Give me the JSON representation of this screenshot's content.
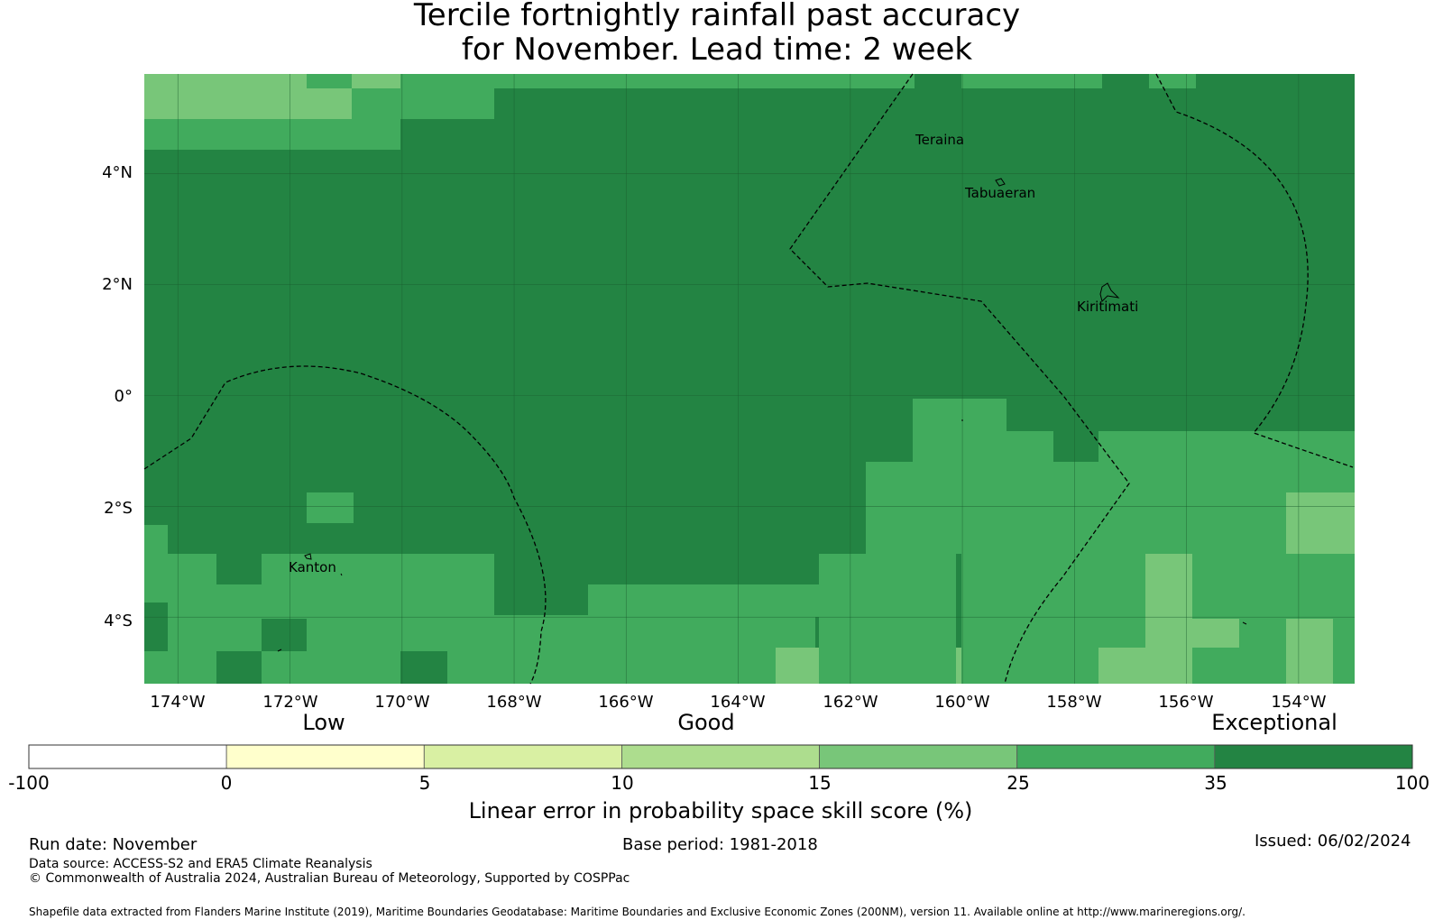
{
  "title": {
    "line1": "Tercile fortnightly rainfall past accuracy",
    "line2": "for November. Lead time: 2 week"
  },
  "map": {
    "lat_labels": [
      "4°N",
      "2°N",
      "0°",
      "2°S",
      "4°S"
    ],
    "lon_labels": [
      "174°W",
      "172°W",
      "170°W",
      "168°W",
      "166°W",
      "164°W",
      "162°W",
      "160°W",
      "158°W",
      "156°W",
      "154°W"
    ],
    "places": [
      "Teraina",
      "Tabuaeran",
      "Kiritimati",
      "Kanton"
    ],
    "extent": {
      "lon_min": -174.6,
      "lon_max": -153.0,
      "lat_min": -5.2,
      "lat_max": 5.8
    }
  },
  "colorbar": {
    "qualitative": [
      "Low",
      "Good",
      "Exceptional"
    ],
    "boundaries": [
      "-100",
      "0",
      "5",
      "10",
      "15",
      "25",
      "35",
      "100"
    ],
    "colors": [
      "#ffffff",
      "#ffffcc",
      "#d9f0a3",
      "#addd8e",
      "#78c679",
      "#41ab5d",
      "#238443"
    ],
    "label": "Linear error in probability space skill score (%)"
  },
  "colors": {
    "c15": "#78c679",
    "c25": "#41ab5d",
    "c35": "#238443"
  },
  "footer": {
    "run_date": "Run date: November",
    "base_period": "Base period: 1981-2018",
    "issued": "Issued: 06/02/2024",
    "data_source": "Data source: ACCESS-S2 and ERA5 Climate Reanalysis",
    "copyright": "© Commonwealth of Australia 2024, Australian Bureau of Meteorology, Supported by COSPPac",
    "shapefile": "Shapefile data extracted from Flanders Marine Institute (2019), Maritime Boundaries Geodatabase: Maritime Boundaries and Exclusive Economic Zones (200NM), version 11. Available online at http://www.marineregions.org/."
  }
}
